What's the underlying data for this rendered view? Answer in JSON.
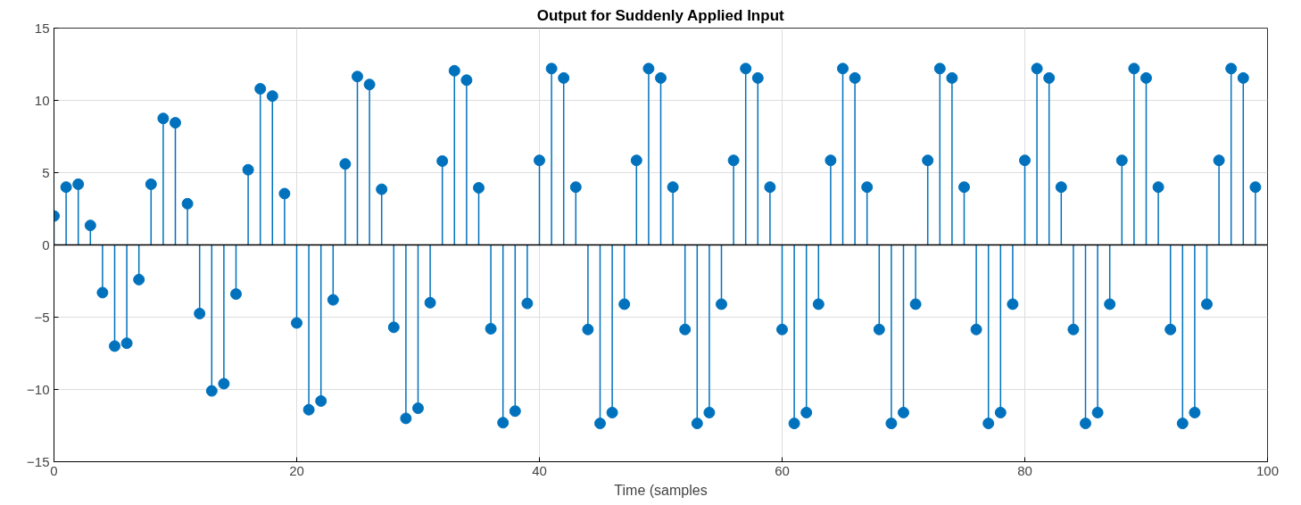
{
  "chart_data": {
    "type": "lollipop",
    "title": "Output for Suddenly Applied Input",
    "xlabel": "Time (samples",
    "x": [
      0,
      1,
      2,
      3,
      4,
      5,
      6,
      7,
      8,
      9,
      10,
      11,
      12,
      13,
      14,
      15,
      16,
      17,
      18,
      19,
      20,
      21,
      22,
      23,
      24,
      25,
      26,
      27,
      28,
      29,
      30,
      31,
      32,
      33,
      34,
      35,
      36,
      37,
      38,
      39,
      40,
      41,
      42,
      43,
      44,
      45,
      46,
      47,
      48,
      49,
      50,
      51,
      52,
      53,
      54,
      55,
      56,
      57,
      58,
      59,
      60,
      61,
      62,
      63,
      64,
      65,
      66,
      67,
      68,
      69,
      70,
      71,
      72,
      73,
      74,
      75,
      76,
      77,
      78,
      79,
      80,
      81,
      82,
      83,
      84,
      85,
      86,
      87,
      88,
      89,
      90,
      91,
      92,
      93,
      94,
      95,
      96,
      97,
      98,
      99
    ],
    "series": [
      {
        "color": "#0072bd",
        "values": [
          2.0,
          4.0,
          4.2,
          1.35,
          -3.3,
          -7.0,
          -6.8,
          -2.4,
          4.2,
          8.75,
          8.45,
          2.85,
          -4.75,
          -10.1,
          -9.6,
          -3.4,
          5.2,
          10.8,
          10.3,
          3.55,
          -5.4,
          -11.4,
          -10.8,
          -3.8,
          5.6,
          11.65,
          11.1,
          3.85,
          -5.7,
          -12.0,
          -11.3,
          -4.0,
          5.8,
          12.05,
          11.4,
          3.95,
          -5.8,
          -12.3,
          -11.5,
          -4.05,
          5.85,
          12.2,
          11.55,
          4.0,
          -5.85,
          -12.35,
          -11.6,
          -4.1,
          5.85,
          12.2,
          11.55,
          4.0,
          -5.85,
          -12.35,
          -11.6,
          -4.1,
          5.85,
          12.2,
          11.55,
          4.0,
          -5.85,
          -12.35,
          -11.6,
          -4.1,
          5.85,
          12.2,
          11.55,
          4.0,
          -5.85,
          -12.35,
          -11.6,
          -4.1,
          5.85,
          12.2,
          11.55,
          4.0,
          -5.85,
          -12.35,
          -11.6,
          -4.1,
          5.85,
          12.2,
          11.55,
          4.0,
          -5.85,
          -12.35,
          -11.6,
          -4.1,
          5.85,
          12.2,
          11.55,
          4.0,
          -5.85,
          -12.35,
          -11.6,
          -4.1,
          5.85,
          12.2,
          11.55,
          4.0
        ]
      }
    ],
    "xlim": [
      0,
      100
    ],
    "xticks": [
      0,
      20,
      40,
      60,
      80,
      100
    ],
    "ylim": [
      -15,
      15
    ],
    "yticks": [
      -15,
      -10,
      -5,
      0,
      5,
      10,
      15
    ],
    "ref_lines": [
      {
        "axis": "y",
        "value": 0,
        "color": "#000000"
      }
    ],
    "grid": true,
    "marker": "circle"
  }
}
